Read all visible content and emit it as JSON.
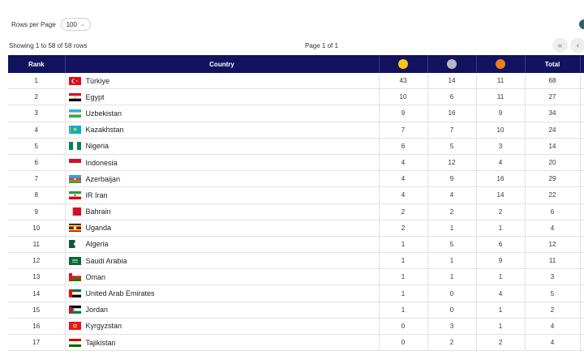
{
  "controls": {
    "rows_per_page_label": "Rows per Page",
    "rows_per_page_value": "100",
    "showing_text": "Showing 1 to 58 of 58 rows",
    "page_info": "Page 1 of 1"
  },
  "table": {
    "headers": {
      "rank": "Rank",
      "country": "Country",
      "total": "Total"
    },
    "medal_colors": {
      "gold": "#f5c518",
      "silver": "#b8b8c4",
      "bronze": "#e8801e"
    },
    "rows": [
      {
        "rank": "1",
        "country": "Türkiye",
        "gold": "43",
        "silver": "14",
        "bronze": "11",
        "total": "68"
      },
      {
        "rank": "2",
        "country": "Egypt",
        "gold": "10",
        "silver": "6",
        "bronze": "11",
        "total": "27"
      },
      {
        "rank": "3",
        "country": "Uzbekistan",
        "gold": "9",
        "silver": "16",
        "bronze": "9",
        "total": "34"
      },
      {
        "rank": "4",
        "country": "Kazakhstan",
        "gold": "7",
        "silver": "7",
        "bronze": "10",
        "total": "24"
      },
      {
        "rank": "5",
        "country": "Nigeria",
        "gold": "6",
        "silver": "5",
        "bronze": "3",
        "total": "14"
      },
      {
        "rank": "6",
        "country": "Indonesia",
        "gold": "4",
        "silver": "12",
        "bronze": "4",
        "total": "20"
      },
      {
        "rank": "7",
        "country": "Azerbaijan",
        "gold": "4",
        "silver": "9",
        "bronze": "16",
        "total": "29"
      },
      {
        "rank": "8",
        "country": "IR Iran",
        "gold": "4",
        "silver": "4",
        "bronze": "14",
        "total": "22"
      },
      {
        "rank": "9",
        "country": "Bahrain",
        "gold": "2",
        "silver": "2",
        "bronze": "2",
        "total": "6"
      },
      {
        "rank": "10",
        "country": "Uganda",
        "gold": "2",
        "silver": "1",
        "bronze": "1",
        "total": "4"
      },
      {
        "rank": "11",
        "country": "Algeria",
        "gold": "1",
        "silver": "5",
        "bronze": "6",
        "total": "12"
      },
      {
        "rank": "12",
        "country": "Saudi Arabia",
        "gold": "1",
        "silver": "1",
        "bronze": "9",
        "total": "11"
      },
      {
        "rank": "13",
        "country": "Oman",
        "gold": "1",
        "silver": "1",
        "bronze": "1",
        "total": "3"
      },
      {
        "rank": "14",
        "country": "United Arab Emirates",
        "gold": "1",
        "silver": "0",
        "bronze": "4",
        "total": "5"
      },
      {
        "rank": "15",
        "country": "Jordan",
        "gold": "1",
        "silver": "0",
        "bronze": "1",
        "total": "2"
      },
      {
        "rank": "16",
        "country": "Kyrgyzstan",
        "gold": "0",
        "silver": "3",
        "bronze": "1",
        "total": "4"
      },
      {
        "rank": "17",
        "country": "Tajikistan",
        "gold": "0",
        "silver": "2",
        "bronze": "2",
        "total": "4"
      }
    ]
  }
}
